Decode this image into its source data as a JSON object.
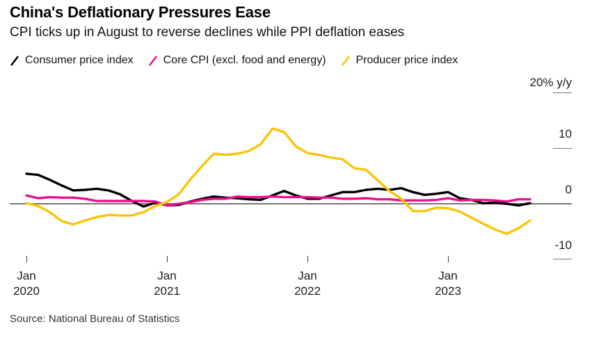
{
  "header": {
    "title": "China's Deflationary Pressures Ease",
    "subtitle": "CPI ticks up in August to reverse declines while PPI deflation eases"
  },
  "legend": {
    "items": [
      {
        "id": "cpi",
        "label": "Consumer price index"
      },
      {
        "id": "core-cpi",
        "label": "Core CPI (excl. food and energy)"
      },
      {
        "id": "ppi",
        "label": "Producer price index"
      }
    ]
  },
  "axes": {
    "y": {
      "ticks": [
        {
          "value": 20,
          "label": "20% y/y"
        },
        {
          "value": 10,
          "label": "10"
        },
        {
          "value": 0,
          "label": "0"
        },
        {
          "value": -10,
          "label": "-10"
        }
      ]
    },
    "x": {
      "ticks": [
        {
          "month": "Jan",
          "year": "2020"
        },
        {
          "month": "Jan",
          "year": "2021"
        },
        {
          "month": "Jan",
          "year": "2022"
        },
        {
          "month": "Jan",
          "year": "2023"
        }
      ]
    }
  },
  "footer": {
    "source": "Source: National Bureau of Statistics"
  },
  "colors": {
    "cpi": "#000000",
    "core_cpi": "#ec0e8c",
    "ppi": "#fcc306",
    "zero_line": "#757575"
  },
  "chart_data": {
    "type": "line",
    "title": "China's Deflationary Pressures Ease",
    "subtitle": "CPI ticks up in August to reverse declines while PPI deflation eases",
    "ylabel": "% y/y",
    "ylim": [
      -12,
      22
    ],
    "y_ticks": [
      20,
      10,
      0,
      -10
    ],
    "x_tick_labels": [
      "Jan 2020",
      "Jan 2021",
      "Jan 2022",
      "Jan 2023"
    ],
    "frequency": "monthly",
    "x": [
      "Jan 2020",
      "Feb 2020",
      "Mar 2020",
      "Apr 2020",
      "May 2020",
      "Jun 2020",
      "Jul 2020",
      "Aug 2020",
      "Sep 2020",
      "Oct 2020",
      "Nov 2020",
      "Dec 2020",
      "Jan 2021",
      "Feb 2021",
      "Mar 2021",
      "Apr 2021",
      "May 2021",
      "Jun 2021",
      "Jul 2021",
      "Aug 2021",
      "Sep 2021",
      "Oct 2021",
      "Nov 2021",
      "Dec 2021",
      "Jan 2022",
      "Feb 2022",
      "Mar 2022",
      "Apr 2022",
      "May 2022",
      "Jun 2022",
      "Jul 2022",
      "Aug 2022",
      "Sep 2022",
      "Oct 2022",
      "Nov 2022",
      "Dec 2022",
      "Jan 2023",
      "Feb 2023",
      "Mar 2023",
      "Apr 2023",
      "May 2023",
      "Jun 2023",
      "Jul 2023",
      "Aug 2023"
    ],
    "series": [
      {
        "name": "Consumer price index",
        "color": "#000000",
        "values": [
          5.4,
          5.2,
          4.3,
          3.3,
          2.4,
          2.5,
          2.7,
          2.4,
          1.7,
          0.5,
          -0.5,
          0.2,
          -0.3,
          -0.2,
          0.4,
          0.9,
          1.3,
          1.1,
          1.0,
          0.8,
          0.7,
          1.5,
          2.3,
          1.5,
          0.9,
          0.9,
          1.5,
          2.1,
          2.1,
          2.5,
          2.7,
          2.5,
          2.8,
          2.1,
          1.6,
          1.8,
          2.1,
          1.0,
          0.7,
          0.1,
          0.2,
          0.0,
          -0.3,
          0.1
        ]
      },
      {
        "name": "Core CPI (excl. food and energy)",
        "color": "#ec0e8c",
        "values": [
          1.5,
          1.0,
          1.2,
          1.1,
          1.1,
          0.9,
          0.5,
          0.5,
          0.5,
          0.5,
          0.5,
          0.4,
          -0.3,
          0.0,
          0.3,
          0.7,
          0.9,
          0.9,
          1.3,
          1.2,
          1.2,
          1.3,
          1.2,
          1.2,
          1.2,
          1.1,
          1.1,
          0.9,
          0.9,
          1.0,
          0.8,
          0.8,
          0.6,
          0.6,
          0.6,
          0.7,
          1.0,
          0.6,
          0.7,
          0.7,
          0.6,
          0.4,
          0.8,
          0.8
        ]
      },
      {
        "name": "Producer price index",
        "color": "#fcc306",
        "values": [
          0.1,
          -0.4,
          -1.5,
          -3.1,
          -3.7,
          -3.0,
          -2.4,
          -2.0,
          -2.1,
          -2.1,
          -1.5,
          -0.4,
          0.3,
          1.7,
          4.4,
          6.8,
          9.0,
          8.8,
          9.0,
          9.5,
          10.7,
          13.5,
          12.9,
          10.3,
          9.1,
          8.8,
          8.3,
          8.0,
          6.4,
          6.1,
          4.2,
          2.3,
          0.9,
          -1.3,
          -1.3,
          -0.7,
          -0.8,
          -1.4,
          -2.5,
          -3.6,
          -4.6,
          -5.4,
          -4.4,
          -3.0
        ]
      }
    ]
  }
}
